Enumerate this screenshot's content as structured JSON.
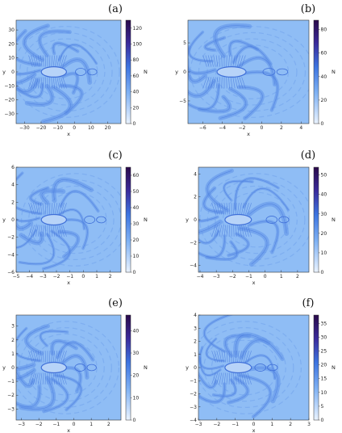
{
  "chart_data": [
    {
      "type": "heatmap",
      "panel_label": "(a)",
      "xlabel": "x",
      "ylabel": "y",
      "colorbar_label": "N",
      "xlim": [
        -35,
        28
      ],
      "ylim": [
        -37,
        37
      ],
      "xticks": [
        -30,
        -20,
        -10,
        0,
        10,
        20
      ],
      "yticks": [
        -30,
        -20,
        -10,
        0,
        10,
        20,
        30
      ],
      "clim": [
        0,
        130
      ],
      "cticks": [
        0,
        20,
        40,
        60,
        80,
        100,
        120
      ]
    },
    {
      "type": "heatmap",
      "panel_label": "(b)",
      "xlabel": "x",
      "ylabel": "y",
      "colorbar_label": "N",
      "xlim": [
        -7.5,
        4.8
      ],
      "ylim": [
        -8.9,
        8.9
      ],
      "xticks": [
        -6,
        -4,
        -2,
        0,
        2,
        4
      ],
      "yticks": [
        -5,
        0,
        5
      ],
      "clim": [
        0,
        88
      ],
      "cticks": [
        0,
        20,
        40,
        60,
        80
      ]
    },
    {
      "type": "heatmap",
      "panel_label": "(c)",
      "xlabel": "x",
      "ylabel": "y",
      "colorbar_label": "N",
      "xlim": [
        -5,
        2.8
      ],
      "ylim": [
        -6,
        6
      ],
      "xticks": [
        -5,
        -4,
        -3,
        -2,
        -1,
        0,
        1,
        2
      ],
      "yticks": [
        -6,
        -4,
        -2,
        0,
        2,
        4,
        6
      ],
      "clim": [
        0,
        65
      ],
      "cticks": [
        0,
        10,
        20,
        30,
        40,
        50,
        60
      ]
    },
    {
      "type": "heatmap",
      "panel_label": "(d)",
      "xlabel": "x",
      "ylabel": "y",
      "colorbar_label": "N",
      "xlim": [
        -4.1,
        2.7
      ],
      "ylim": [
        -4.6,
        4.6
      ],
      "xticks": [
        -4,
        -3,
        -2,
        -1,
        0,
        1,
        2
      ],
      "yticks": [
        -4,
        -2,
        0,
        2,
        4
      ],
      "clim": [
        0,
        54
      ],
      "cticks": [
        0,
        10,
        20,
        30,
        40,
        50
      ]
    },
    {
      "type": "heatmap",
      "panel_label": "(e)",
      "xlabel": "x",
      "ylabel": "y",
      "colorbar_label": "N",
      "xlim": [
        -3.3,
        2.7
      ],
      "ylim": [
        -3.8,
        3.8
      ],
      "xticks": [
        -3,
        -2,
        -1,
        0,
        1,
        2
      ],
      "yticks": [
        -3,
        -2,
        -1,
        0,
        1,
        2,
        3
      ],
      "clim": [
        0,
        47
      ],
      "cticks": [
        0,
        10,
        20,
        30,
        40
      ]
    },
    {
      "type": "heatmap",
      "panel_label": "(f)",
      "xlabel": "x",
      "ylabel": "y",
      "colorbar_label": "N",
      "xlim": [
        -3,
        3
      ],
      "ylim": [
        -4,
        4
      ],
      "xticks": [
        -3,
        -2,
        -1,
        0,
        1,
        2,
        3
      ],
      "yticks": [
        -4,
        -3,
        -2,
        -1,
        0,
        1,
        2,
        3,
        4
      ],
      "clim": [
        0,
        38
      ],
      "cticks": [
        0,
        5,
        10,
        15,
        20,
        25,
        30,
        35
      ]
    }
  ],
  "colors": {
    "background_field": "#8fbdf5",
    "pattern": "#5f92e8",
    "pattern_dark": "#3f6fd8",
    "colormap_low": "#eaf3ff",
    "colormap_mid": "#4f8ae8",
    "colormap_high": "#2a0a4a"
  }
}
